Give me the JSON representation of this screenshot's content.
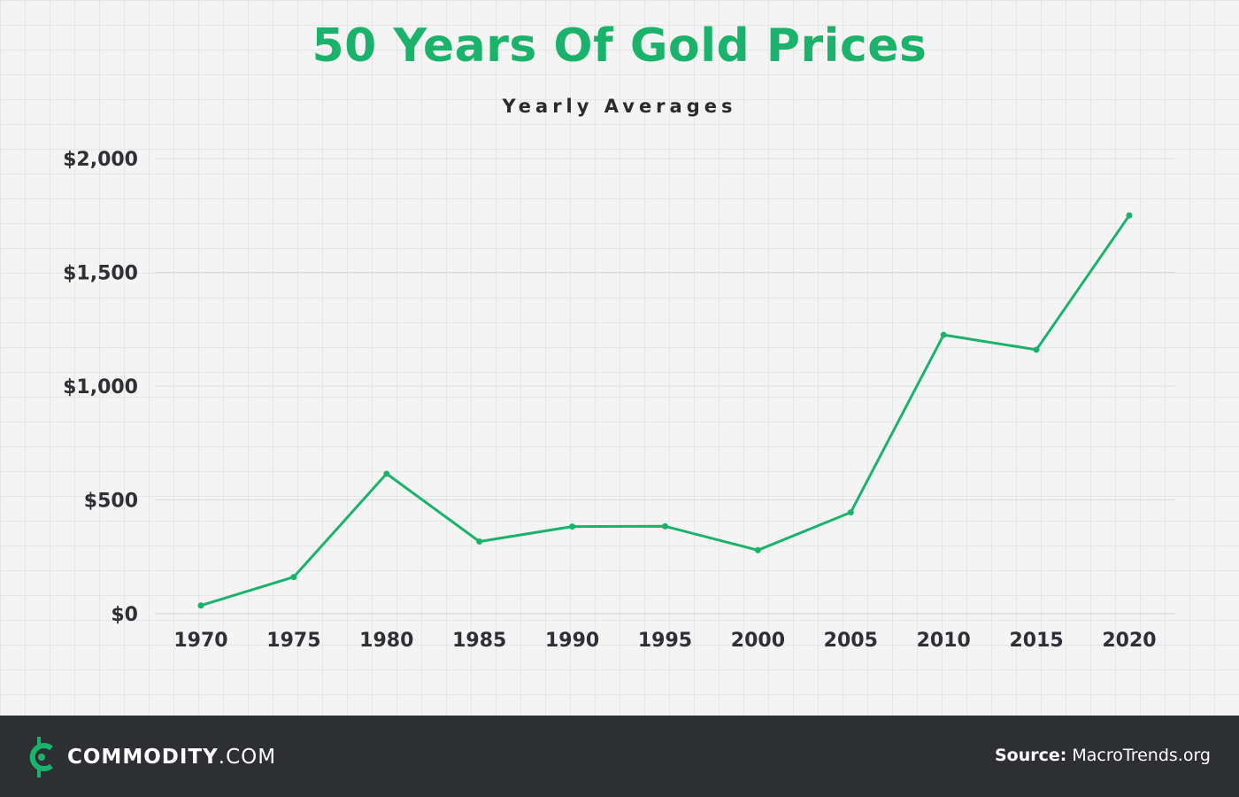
{
  "header": {
    "title": "50 Years Of Gold Prices",
    "subtitle": "Yearly Averages"
  },
  "footer": {
    "brand_name": "COMMODITY",
    "brand_suffix": ".COM",
    "source_label": "Source:",
    "source_value": "MacroTrends.org",
    "logo_icon": "commodity-c-coin-icon"
  },
  "colors": {
    "accent": "#1bb36b",
    "text": "#2f3035",
    "footer_bg": "#2e2f33",
    "background": "#f4f4f4"
  },
  "chart_data": {
    "type": "line",
    "title": "50 Years Of Gold Prices",
    "subtitle": "Yearly Averages",
    "xlabel": "",
    "ylabel": "",
    "x": [
      "1970",
      "1975",
      "1980",
      "1985",
      "1990",
      "1995",
      "2000",
      "2005",
      "2010",
      "2015",
      "2020"
    ],
    "series": [
      {
        "name": "",
        "values": [
          36,
          161,
          615,
          317,
          383,
          384,
          279,
          445,
          1225,
          1160,
          1750
        ]
      }
    ],
    "y_ticks": [
      "$0",
      "$500",
      "$1,000",
      "$1,500",
      "$2,000"
    ],
    "y_tick_values": [
      0,
      500,
      1000,
      1500,
      2000
    ],
    "ylim": [
      0,
      2000
    ],
    "grid": true,
    "legend": "none"
  }
}
